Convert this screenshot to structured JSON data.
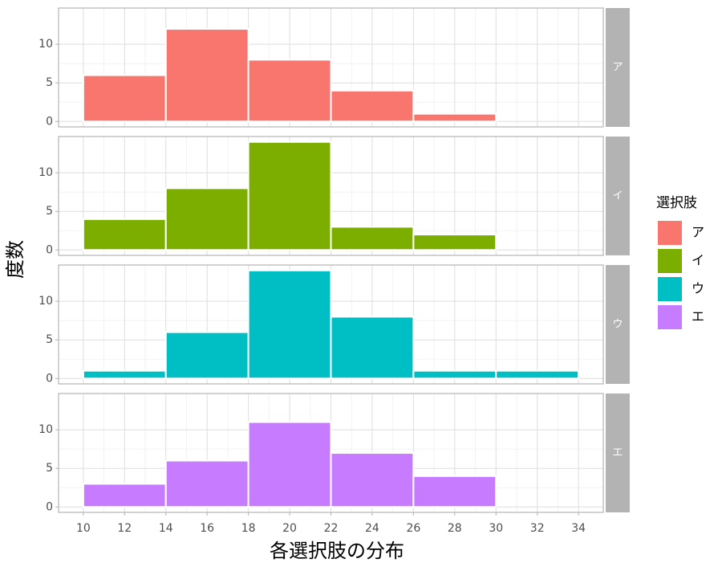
{
  "chart_data": {
    "type": "histogram",
    "x_label": "各選択肢の分布",
    "y_label": "度数",
    "legend_title": "選択肢",
    "bins": [
      10,
      14,
      18,
      22,
      26,
      30,
      34
    ],
    "series": [
      {
        "name": "ア",
        "color": "#f8766d",
        "values": [
          6,
          12,
          8,
          4,
          1,
          0
        ]
      },
      {
        "name": "イ",
        "color": "#7cae00",
        "values": [
          4,
          8,
          14,
          3,
          2,
          0
        ]
      },
      {
        "name": "ウ",
        "color": "#00bfc4",
        "values": [
          1,
          6,
          14,
          8,
          1,
          1
        ]
      },
      {
        "name": "エ",
        "color": "#c77cff",
        "values": [
          3,
          6,
          11,
          7,
          4,
          0
        ]
      }
    ],
    "xlim": [
      8.8,
      35.2
    ],
    "xticks": [
      10,
      12,
      14,
      16,
      18,
      20,
      22,
      24,
      26,
      28,
      30,
      32,
      34
    ],
    "ylim": [
      -0.7,
      14.7
    ],
    "yticks": [
      0,
      5,
      10
    ],
    "grid": true
  }
}
